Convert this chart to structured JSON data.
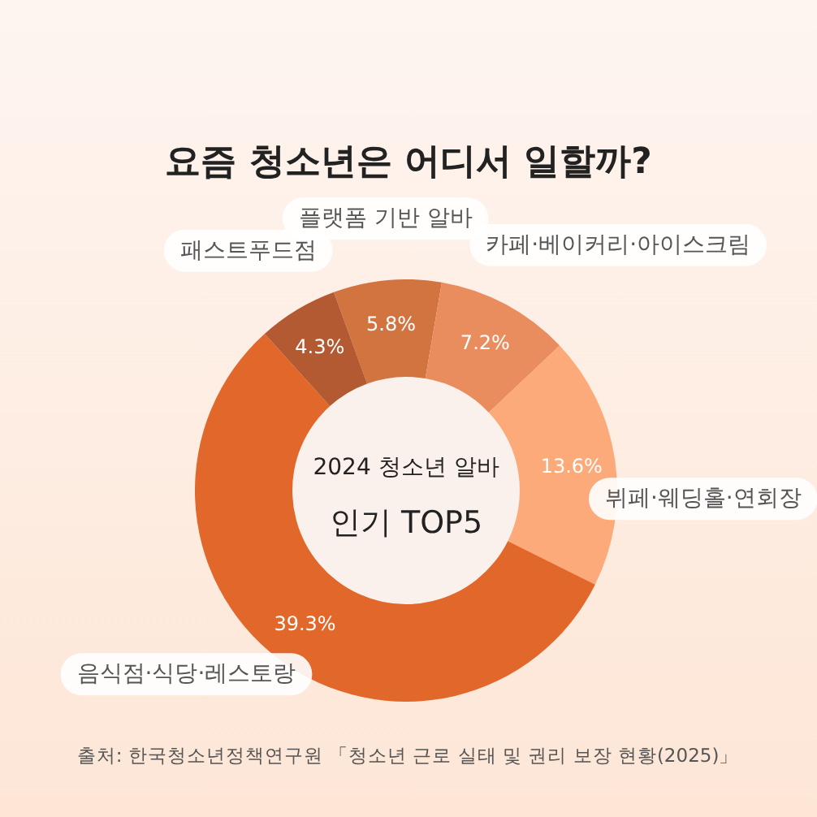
{
  "chart_data": {
    "type": "donut",
    "title": "요즘 청소년은 어디서 일할까?",
    "categories": [
      "플랫폼 기반 알바",
      "카페·베이커리·아이스크림",
      "뷔페·웨딩홀·연회장",
      "음식점·식당·레스토랑",
      "패스트푸드점"
    ],
    "values": [
      5.8,
      7.2,
      13.6,
      39.3,
      4.3
    ],
    "colors": [
      "#d2743f",
      "#e98c5e",
      "#fcaa7a",
      "#e2672a",
      "#b35a32"
    ],
    "value_labels": [
      "5.8%",
      "7.2%",
      "13.6%",
      "39.3%",
      "4.3%"
    ],
    "legend": false,
    "annotations": [
      "2024 청소년 알바",
      "인기 TOP5",
      "출처: 한국청소년정책연구원 「청소년 근로 실태 및 권리 보장 현황(2025)」"
    ]
  }
}
